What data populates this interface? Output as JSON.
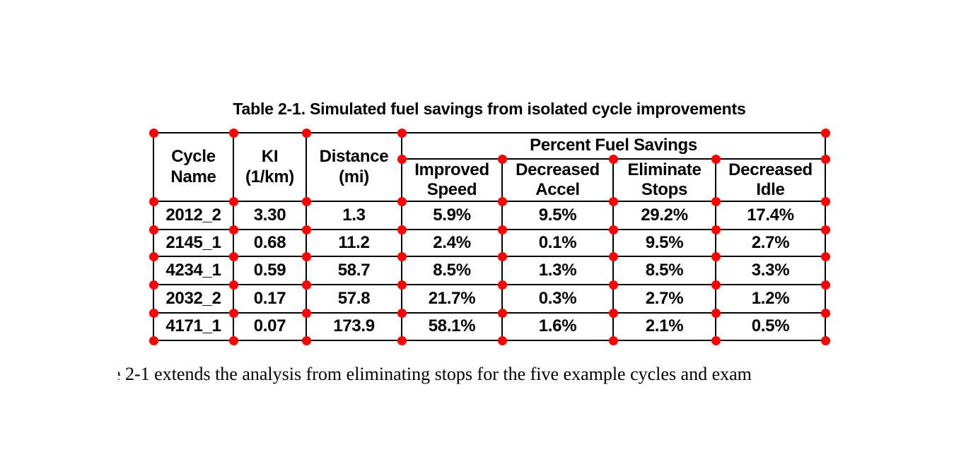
{
  "document": {
    "table_caption": "Table 2-1. Simulated fuel savings from isolated cycle improvements",
    "body_text_fragment": "e",
    "body_text": "2-1 extends the analysis from eliminating stops for the five example cycles and exam"
  },
  "table": {
    "group_header": "Percent Fuel Savings",
    "column_headers": [
      "Cycle\nName",
      "KI\n(1/km)",
      "Distance\n(mi)",
      "Improved\nSpeed",
      "Decreased\nAccel",
      "Eliminate\nStops",
      "Decreased\nIdle"
    ],
    "rows": [
      [
        "2012_2",
        "3.30",
        "1.3",
        "5.9%",
        "9.5%",
        "29.2%",
        "17.4%"
      ],
      [
        "2145_1",
        "0.68",
        "11.2",
        "2.4%",
        "0.1%",
        "9.5%",
        "2.7%"
      ],
      [
        "4234_1",
        "0.59",
        "58.7",
        "8.5%",
        "1.3%",
        "8.5%",
        "3.3%"
      ],
      [
        "2032_2",
        "0.17",
        "57.8",
        "21.7%",
        "0.3%",
        "2.7%",
        "1.2%"
      ],
      [
        "4171_1",
        "0.07",
        "173.9",
        "58.1%",
        "1.6%",
        "2.1%",
        "0.5%"
      ]
    ]
  },
  "annotation": {
    "marker": "table-corner-dot",
    "dot_color": "#ff0000"
  },
  "colors": {
    "text": "#000000",
    "background": "#ffffff",
    "table_border": "#000000"
  }
}
